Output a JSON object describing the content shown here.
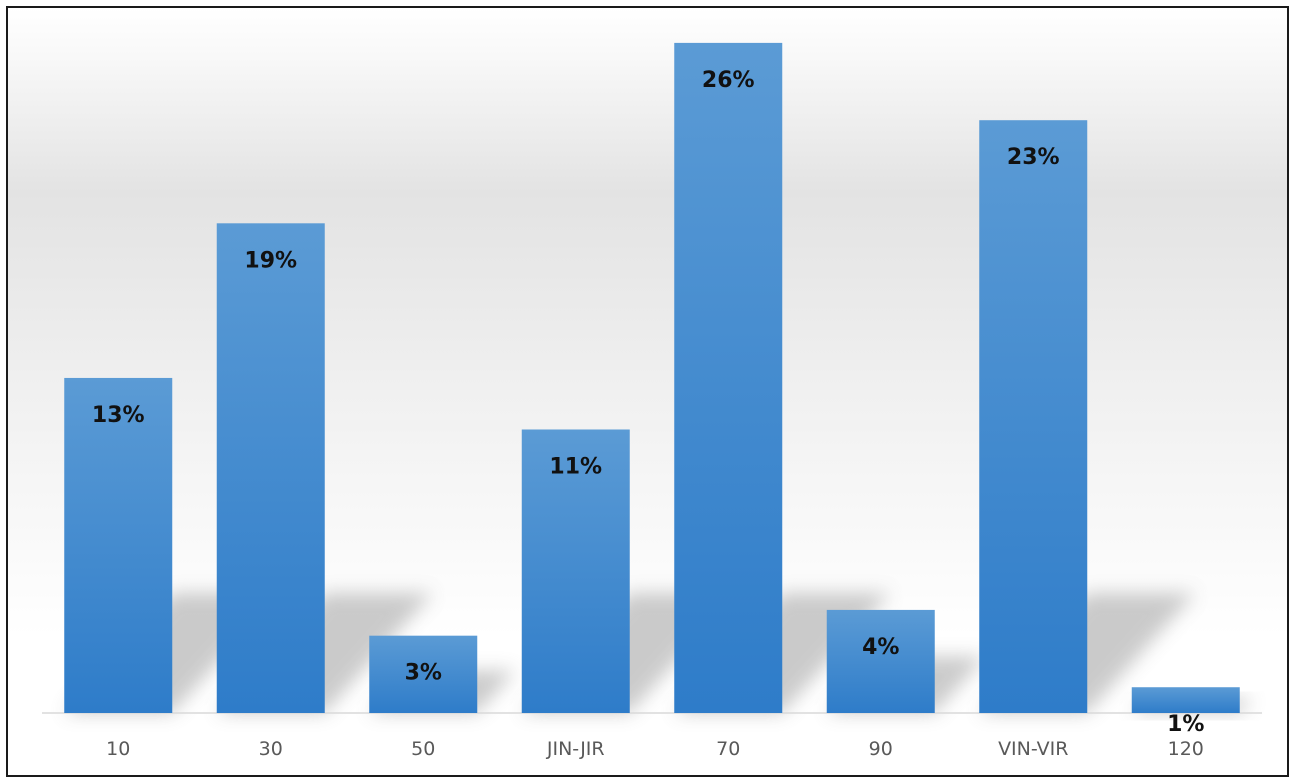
{
  "chart_data": {
    "type": "bar",
    "title": "",
    "xlabel": "",
    "ylabel": "",
    "categories": [
      "10",
      "30",
      "50",
      "JIN-JIR",
      "70",
      "90",
      "VIN-VIR",
      "120"
    ],
    "values": [
      13,
      19,
      3,
      11,
      26,
      4,
      23,
      1
    ],
    "data_labels": [
      "13%",
      "19%",
      "3%",
      "11%",
      "26%",
      "4%",
      "23%",
      "1%"
    ],
    "unit": "%",
    "ylim": [
      0,
      26.5
    ],
    "grid": false,
    "legend": "none",
    "colors": {
      "bar_top": "#5b9bd5",
      "bar_bottom": "#2e7cc9",
      "label": "#111111",
      "tick_label": "#595959",
      "axis_line": "#d9d9d9"
    }
  }
}
